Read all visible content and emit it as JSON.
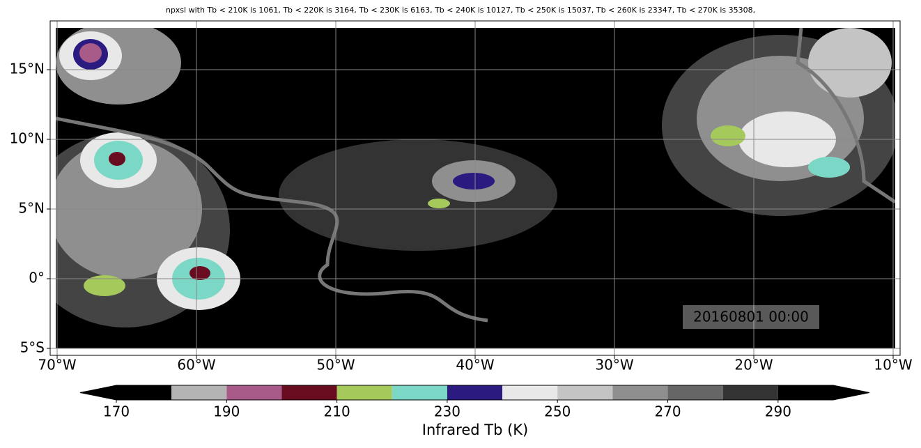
{
  "title": "npxsl with Tb < 210K is 1061,  Tb < 220K is 3164,  Tb < 230K is 6163,  Tb < 240K is 10127,  Tb < 250K is 15037,  Tb < 260K is 23347,  Tb < 270K is 35308,",
  "timestamp": "20160801 00:00",
  "map": {
    "xlim": [
      -70.5,
      -9.5
    ],
    "ylim": [
      -5.5,
      18.5
    ],
    "lon_ticks": [
      {
        "value": -70,
        "label": "70°W"
      },
      {
        "value": -60,
        "label": "60°W"
      },
      {
        "value": -50,
        "label": "50°W"
      },
      {
        "value": -40,
        "label": "40°W"
      },
      {
        "value": -30,
        "label": "30°W"
      },
      {
        "value": -20,
        "label": "20°W"
      },
      {
        "value": -10,
        "label": "10°W"
      }
    ],
    "lat_ticks": [
      {
        "value": -5,
        "label": "5°S"
      },
      {
        "value": 0,
        "label": "0°"
      },
      {
        "value": 5,
        "label": "5°N"
      },
      {
        "value": 10,
        "label": "10°N"
      },
      {
        "value": 15,
        "label": "15°N"
      }
    ],
    "grid": true
  },
  "colorbar": {
    "label": "Infrared Tb (K)",
    "levels": [
      170,
      180,
      190,
      200,
      210,
      220,
      230,
      240,
      250,
      260,
      270,
      280,
      290,
      300
    ],
    "colors": [
      "#000000",
      "#b4b4b4",
      "#a85a88",
      "#6a0c20",
      "#a6c95c",
      "#7cd8c6",
      "#2b1b80",
      "#e8e8e8",
      "#c4c4c4",
      "#8f8f8f",
      "#666666",
      "#333333",
      "#000000"
    ],
    "extend_colors": [
      "#000000",
      "#000000"
    ],
    "ticks": [
      170,
      190,
      210,
      230,
      250,
      270,
      290
    ]
  }
}
